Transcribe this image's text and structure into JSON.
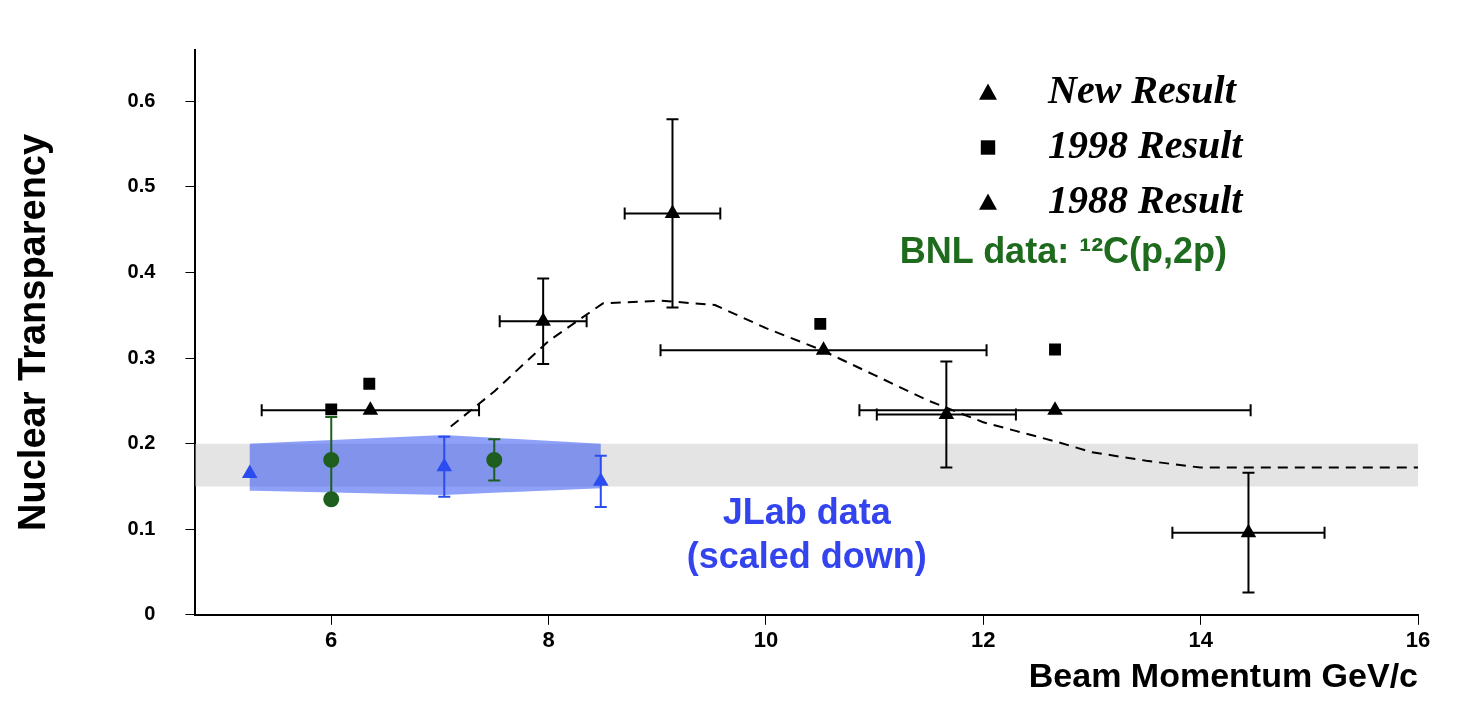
{
  "chart_data": {
    "type": "scatter",
    "xlabel": "Beam Momentum GeV/c",
    "ylabel": "Nuclear Transparency",
    "xlim": [
      4.75,
      16
    ],
    "xticks": [
      6,
      8,
      10,
      12,
      14,
      16
    ],
    "ylim": [
      0,
      0.66
    ],
    "yticks": [
      0,
      0.1,
      0.2,
      0.3,
      0.4,
      0.5,
      0.6
    ],
    "legend": "top right",
    "bands": [
      {
        "axis": "y",
        "from": 0.15,
        "to": 0.2,
        "color": "#e4e4e4"
      }
    ],
    "series": [
      {
        "name": "New Result",
        "color": "#000000",
        "marker": "triangle",
        "x": [
          7.95,
          9.14,
          11.66,
          14.44
        ],
        "values": [
          0.343,
          0.469,
          0.234,
          0.096
        ],
        "errors": [
          0.05,
          0.11,
          0.062,
          0.07
        ],
        "xerrors": [
          0.4,
          0.44,
          0.64,
          0.7
        ]
      },
      {
        "name": "1998 Result",
        "color": "#000000",
        "marker": "square",
        "x": [
          6.0,
          6.35,
          10.5,
          12.66
        ],
        "values": [
          0.24,
          0.27,
          0.34,
          0.31
        ]
      },
      {
        "name": "1988 Result",
        "color": "#000000",
        "marker": "triangle",
        "x": [
          6.36,
          10.53,
          12.66
        ],
        "values": [
          0.239,
          0.309,
          0.239
        ],
        "xerrors": [
          1.0,
          1.5,
          1.8
        ]
      },
      {
        "type": "line",
        "color": "#000000",
        "marker": "none",
        "line_style": "dashed",
        "x": [
          7.1,
          7.5,
          8.0,
          8.5,
          9.04,
          9.53,
          10.0,
          10.5,
          11.0,
          11.5,
          12.0,
          12.68,
          13.0,
          13.5,
          14.0,
          16.0
        ],
        "values": [
          0.22,
          0.261,
          0.32,
          0.364,
          0.367,
          0.362,
          0.335,
          0.31,
          0.28,
          0.25,
          0.225,
          0.202,
          0.19,
          0.18,
          0.172,
          0.172
        ]
      },
      {
        "color": "#2b4cf0",
        "marker": "triangle",
        "x": [
          5.25,
          7.04,
          8.48
        ],
        "values": [
          0.165,
          0.173,
          0.156
        ],
        "errors": [
          null,
          0.035,
          0.03
        ],
        "lower": [
          0.145,
          0.14,
          0.148
        ],
        "upper": [
          0.2,
          0.21,
          0.2
        ]
      },
      {
        "color": "#1e5e1e",
        "marker": "circle",
        "x": [
          6.0,
          6.0,
          7.5
        ],
        "values": [
          0.181,
          0.135,
          0.181
        ],
        "errors": [
          0.05,
          null,
          0.024
        ]
      }
    ],
    "annotations": [
      "BNL data: ¹²C(p,2p)",
      "JLab data\n(scaled down)"
    ]
  }
}
